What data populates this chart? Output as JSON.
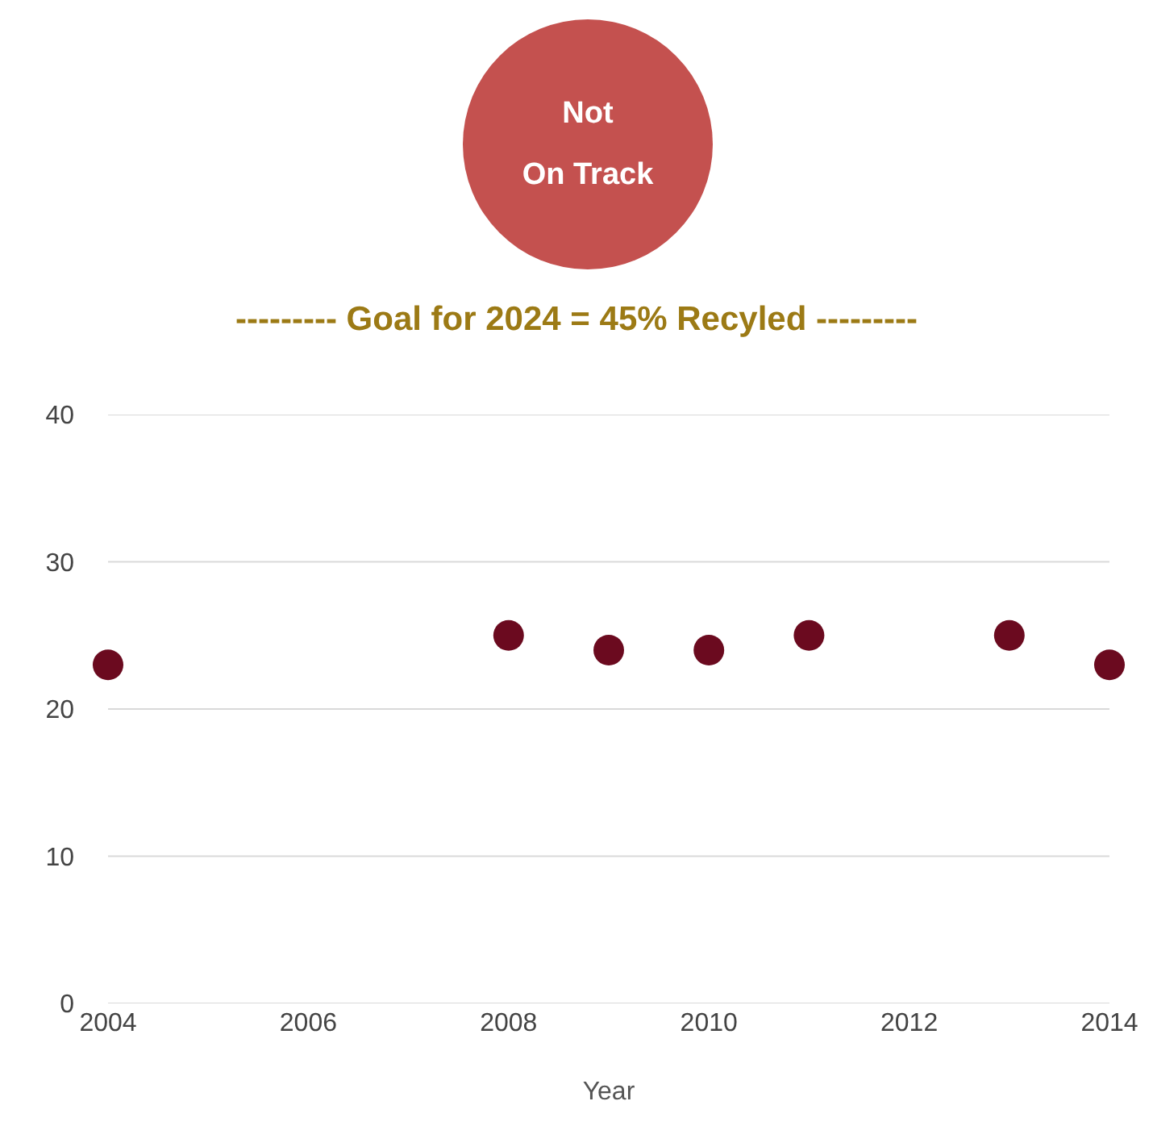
{
  "chart_data": {
    "type": "scatter",
    "title": "--------- Goal for 2024 = 45% Recyled ---------",
    "xlabel": "Year",
    "annotations": [
      "Not\nOn Track"
    ],
    "x": [
      2004,
      2008,
      2009,
      2010,
      2011,
      2013,
      2014
    ],
    "series": [
      {
        "color": "#6b0a1f",
        "values": [
          23,
          25,
          24,
          24,
          25,
          25,
          23
        ]
      }
    ],
    "xlim": [
      2004,
      2014
    ],
    "xticks": [
      2004,
      2006,
      2008,
      2010,
      2012,
      2014
    ],
    "ylim": [
      0,
      40
    ],
    "yticks": [
      0,
      10,
      20,
      30,
      40
    ],
    "grid": "y",
    "marker": "circle"
  }
}
